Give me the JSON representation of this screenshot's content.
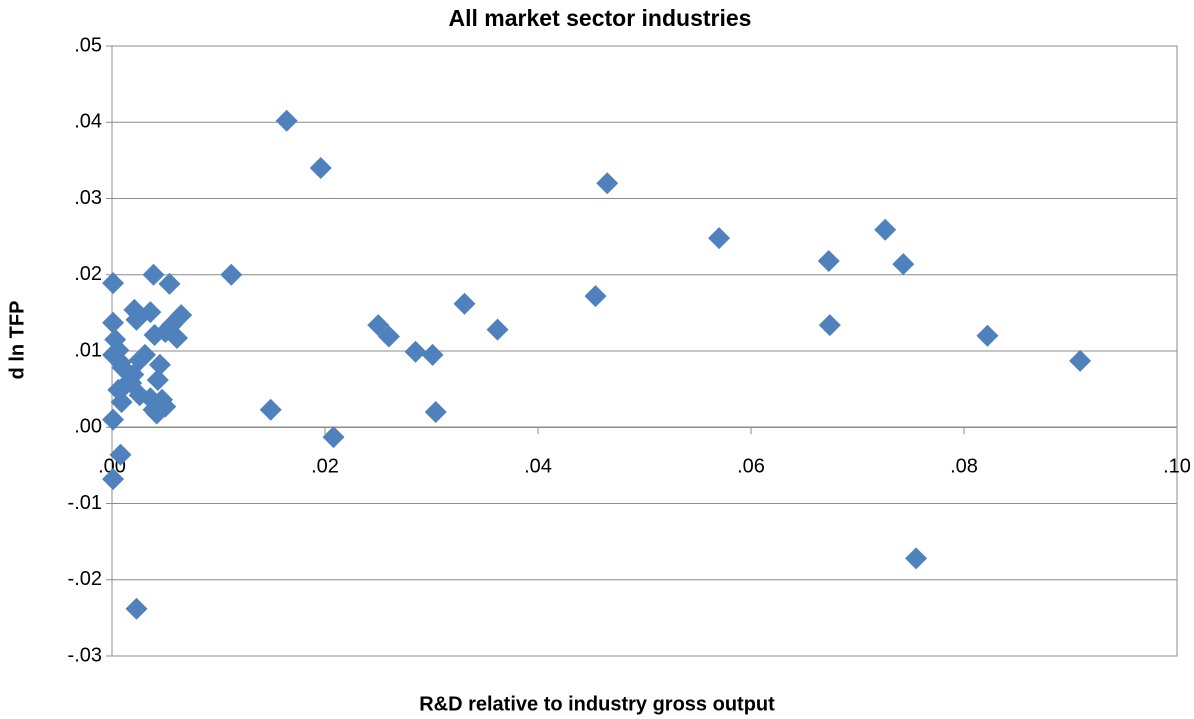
{
  "chart_data": {
    "type": "scatter",
    "title": "All market sector industries",
    "x_label": "R&D relative to industry gross output",
    "y_label": "d ln TFP",
    "color": "#4f81bd",
    "marker": "diamond",
    "grid": true,
    "xlim": [
      0,
      0.1
    ],
    "ylim": [
      -0.03,
      0.05
    ],
    "xticks": [
      {
        "value": 0,
        "label": ".00"
      },
      {
        "value": 0.02,
        "label": ".02"
      },
      {
        "value": 0.04,
        "label": ".04"
      },
      {
        "value": 0.06,
        "label": ".06"
      },
      {
        "value": 0.08,
        "label": ".08"
      },
      {
        "value": 0.1,
        "label": ".10"
      }
    ],
    "yticks": [
      {
        "value": -0.03,
        "label": "-.03"
      },
      {
        "value": -0.02,
        "label": "-.02"
      },
      {
        "value": -0.01,
        "label": "-.01"
      },
      {
        "value": 0,
        "label": ".00"
      },
      {
        "value": 0.01,
        "label": ".01"
      },
      {
        "value": 0.02,
        "label": ".02"
      },
      {
        "value": 0.03,
        "label": ".03"
      },
      {
        "value": 0.04,
        "label": ".04"
      },
      {
        "value": 0.05,
        "label": ".05"
      }
    ],
    "x": [
      0.0164,
      0.0196,
      0.0465,
      0.057,
      0.0726,
      0.0673,
      0.0743,
      0.0454,
      0.0112,
      0.0331,
      0.0362,
      0.025,
      0.026,
      0.0285,
      0.0301,
      0.0674,
      0.0822,
      0.0909,
      0.0149,
      0.0304,
      0.0208,
      0.0755,
      0.0023,
      0.0001,
      0.0008,
      0.0001,
      0.0001,
      0.0039,
      0.0054,
      0.0001,
      0.0003,
      0.0006,
      0.0001,
      0.0008,
      0.0021,
      0.0023,
      0.0036,
      0.004,
      0.0065,
      0.0056,
      0.0061,
      0.005,
      0.0026,
      0.0031,
      0.0045,
      0.001,
      0.002,
      0.0006,
      0.0013,
      0.0009,
      0.0026,
      0.0036,
      0.0043,
      0.0047,
      0.0039,
      0.005,
      0.0042,
      0.0018
    ],
    "values": [
      0.0402,
      0.034,
      0.032,
      0.0248,
      0.0259,
      0.0218,
      0.0214,
      0.0172,
      0.02,
      0.0162,
      0.0128,
      0.0134,
      0.0119,
      0.0099,
      0.0095,
      0.0134,
      0.012,
      0.0087,
      0.0023,
      0.002,
      -0.0013,
      -0.0172,
      -0.0238,
      -0.0068,
      -0.0036,
      0.001,
      0.0189,
      0.02,
      0.0188,
      0.0137,
      0.0115,
      0.0101,
      0.0095,
      0.0085,
      0.0154,
      0.0141,
      0.0151,
      0.0121,
      0.0147,
      0.0134,
      0.0117,
      0.0125,
      0.0088,
      0.0095,
      0.0082,
      0.0078,
      0.0069,
      0.0049,
      0.0056,
      0.0033,
      0.0042,
      0.0038,
      0.0062,
      0.0036,
      0.0023,
      0.0027,
      0.0018,
      0.0058
    ]
  }
}
